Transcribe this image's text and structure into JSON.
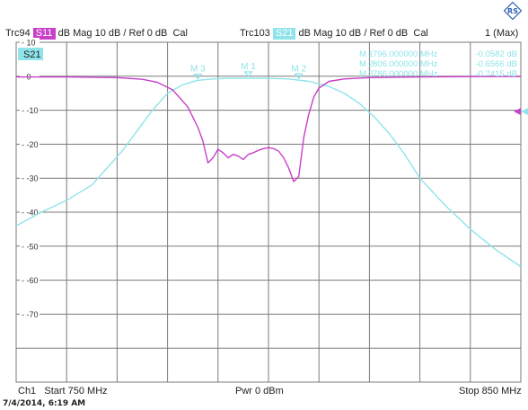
{
  "header": {
    "trace1": {
      "name": "Trc94",
      "tag": "S11",
      "format": "dB Mag",
      "scale": "10 dB /",
      "ref": "Ref 0 dB",
      "cal": "Cal"
    },
    "trace2": {
      "name": "Trc103",
      "tag": "S21",
      "format": "dB Mag",
      "scale": "10 dB /",
      "ref": "Ref 0 dB",
      "cal": "Cal"
    },
    "channel_label": "1 (Max)"
  },
  "footer": {
    "channel": "Ch1",
    "start": "Start 750 MHz",
    "power": "Pwr 0 dBm",
    "stop": "Stop 850 MHz"
  },
  "timestamp": "7/4/2014, 6:19 AM",
  "colors": {
    "s11": "#c83fc8",
    "s21": "#8ee4ea",
    "grid": "#7a7a7a",
    "text": "#222222"
  },
  "chart_data": {
    "type": "line",
    "trace_label": "S21",
    "xlim": [
      750,
      850
    ],
    "ylim": [
      -90,
      10
    ],
    "yticks": [
      10,
      0,
      -10,
      -20,
      -30,
      -40,
      -50,
      -60,
      -70
    ],
    "series": [
      {
        "name": "S11",
        "color": "#c83fc8",
        "x": [
          750,
          760,
          770,
          775,
          778,
          781,
          784,
          786,
          787,
          788,
          789,
          790,
          791,
          792,
          793,
          794,
          795,
          796,
          797,
          798,
          799,
          800,
          801,
          802,
          803,
          804,
          805,
          806,
          807,
          808,
          809,
          810,
          812,
          815,
          820,
          830,
          840,
          850
        ],
        "y": [
          -0.2,
          -0.2,
          -0.4,
          -0.9,
          -1.8,
          -4,
          -9,
          -15,
          -19,
          -25.5,
          -24,
          -21.5,
          -22.5,
          -24,
          -23,
          -23.5,
          -24.5,
          -23,
          -22.5,
          -21.8,
          -21.3,
          -21,
          -21.3,
          -22,
          -24,
          -27,
          -31,
          -29.5,
          -18,
          -11,
          -6,
          -3.5,
          -1.5,
          -0.8,
          -0.4,
          -0.2,
          -0.1,
          -0.05
        ]
      },
      {
        "name": "S21",
        "color": "#8ee4ea",
        "x": [
          750,
          755,
          760,
          765,
          768,
          771,
          774,
          777,
          780,
          783,
          786,
          789,
          792,
          796,
          800,
          804,
          808,
          812,
          815,
          818,
          821,
          824,
          827,
          830,
          835,
          840,
          845,
          850
        ],
        "y": [
          -44,
          -40,
          -36.5,
          -32,
          -27,
          -22,
          -16,
          -10,
          -5,
          -2.5,
          -1.2,
          -0.8,
          -0.6,
          -0.6,
          -0.6,
          -0.8,
          -1.5,
          -3,
          -5,
          -8,
          -12,
          -17,
          -23,
          -30,
          -38,
          -45,
          -51,
          -56
        ]
      }
    ],
    "markers": [
      {
        "label": "M 1",
        "freq": "796.000000 MHz",
        "value": "-0.0582 dB",
        "x": 796,
        "y": -0.058
      },
      {
        "label": "M 2",
        "freq": "806.000000 MHz",
        "value": "-0.6566 dB",
        "x": 806,
        "y": -0.657
      },
      {
        "label": "M 3",
        "freq": "786.000000 MHz",
        "value": "-0.7415 dB",
        "x": 786,
        "y": -0.742
      }
    ]
  }
}
